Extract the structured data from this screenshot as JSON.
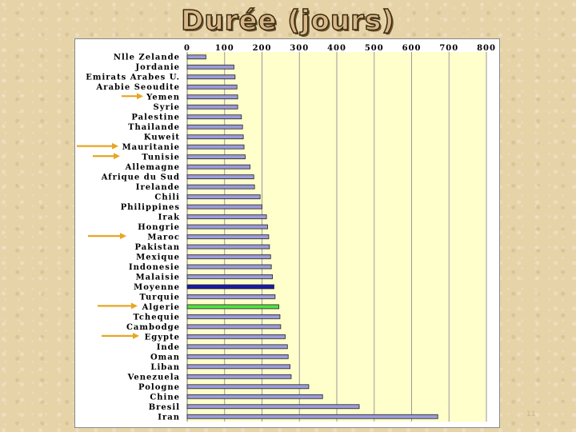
{
  "page_title": "Durée (jours)",
  "page_number": "11",
  "colors": {
    "default_bar": "#9b9bd9",
    "moyenne_bar": "#1a1aa6",
    "algerie_bar": "#55dd44",
    "plot_background": "#ffffcc",
    "arrow": "#e8a623"
  },
  "chart_data": {
    "type": "bar",
    "orientation": "horizontal",
    "title": "Durée (jours)",
    "xlim": [
      0,
      800
    ],
    "x_ticks": [
      "0",
      "100",
      "200",
      "300",
      "400",
      "500",
      "600",
      "700",
      "800"
    ],
    "grid": true,
    "categories": [
      "Nlle Zelande",
      "Jordanie",
      "Emirats Arabes U.",
      "Arabie Seoudite",
      "Yemen",
      "Syrie",
      "Palestine",
      "Thailande",
      "Kuweit",
      "Mauritanie",
      "Tunisie",
      "Allemagne",
      "Afrique du Sud",
      "Irelande",
      "Chili",
      "Philippines",
      "Irak",
      "Hongrie",
      "Maroc",
      "Pakistan",
      "Mexique",
      "Indonesie",
      "Malaisie",
      "Moyenne",
      "Turquie",
      "Algerie",
      "Tchequie",
      "Cambodge",
      "Egypte",
      "Inde",
      "Oman",
      "Liban",
      "Venezuela",
      "Pologne",
      "Chine",
      "Bresil",
      "Iran"
    ],
    "values": [
      50,
      125,
      128,
      133,
      135,
      135,
      145,
      148,
      150,
      152,
      155,
      168,
      178,
      180,
      195,
      200,
      212,
      215,
      218,
      220,
      223,
      225,
      228,
      232,
      235,
      245,
      248,
      250,
      262,
      268,
      270,
      275,
      278,
      325,
      362,
      460,
      670
    ],
    "highlighted": {
      "Moyenne": "moyenne_bar",
      "Algerie": "algerie_bar"
    },
    "arrows_pointing_to": [
      "Yemen",
      "Mauritanie",
      "Tunisie",
      "Maroc",
      "Algerie",
      "Egypte"
    ]
  }
}
